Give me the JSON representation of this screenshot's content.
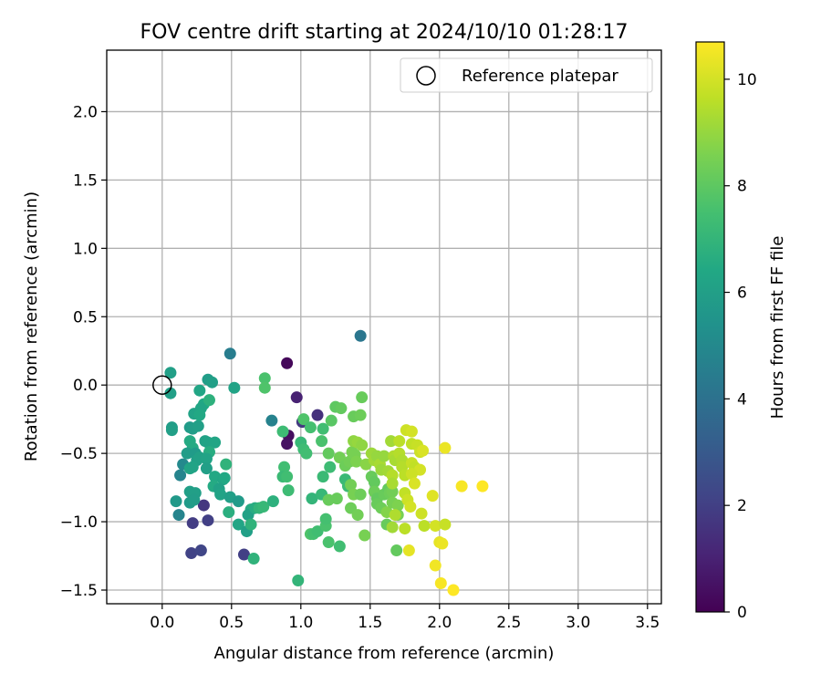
{
  "chart_data": {
    "type": "scatter",
    "title": "FOV centre drift starting at 2024/10/10 01:28:17",
    "xlabel": "Angular distance from reference (arcmin)",
    "ylabel": "Rotation from reference (arcmin)",
    "xlim": [
      -0.4,
      3.6
    ],
    "ylim": [
      -1.6,
      2.45
    ],
    "xticks": [
      0.0,
      0.5,
      1.0,
      1.5,
      2.0,
      2.5,
      3.0,
      3.5
    ],
    "xtick_labels": [
      "0.0",
      "0.5",
      "1.0",
      "1.5",
      "2.0",
      "2.5",
      "3.0",
      "3.5"
    ],
    "yticks": [
      -1.5,
      -1.0,
      -0.5,
      0.0,
      0.5,
      1.0,
      1.5,
      2.0
    ],
    "ytick_labels": [
      "−1.5",
      "−1.0",
      "−0.5",
      "0.0",
      "0.5",
      "1.0",
      "1.5",
      "2.0"
    ],
    "grid": true,
    "legend": {
      "placement": "top-right",
      "label": "Reference platepar"
    },
    "reference_point": {
      "x": 0.0,
      "y": 0.0
    },
    "colorbar": {
      "label": "Hours from first FF file",
      "min": 0,
      "max": 10.7,
      "ticks": [
        0,
        2,
        4,
        6,
        8,
        10
      ],
      "tick_labels": [
        "0",
        "2",
        "4",
        "6",
        "8",
        "10"
      ],
      "colormap": "viridis"
    },
    "points": [
      [
        0.9,
        0.16,
        0.2
      ],
      [
        0.97,
        -0.09,
        1.0
      ],
      [
        0.91,
        -0.37,
        0.4
      ],
      [
        0.9,
        -0.43,
        0.5
      ],
      [
        1.12,
        -0.22,
        1.5
      ],
      [
        1.01,
        -0.27,
        1.8
      ],
      [
        0.3,
        -0.88,
        1.7
      ],
      [
        0.22,
        -1.01,
        1.9
      ],
      [
        0.33,
        -0.99,
        2.0
      ],
      [
        0.21,
        -1.23,
        2.1
      ],
      [
        0.28,
        -1.21,
        2.2
      ],
      [
        0.59,
        -1.24,
        2.0
      ],
      [
        0.49,
        0.23,
        4.5
      ],
      [
        1.43,
        0.36,
        4.2
      ],
      [
        0.79,
        -0.26,
        4.7
      ],
      [
        0.13,
        -0.66,
        4.8
      ],
      [
        0.12,
        -0.95,
        4.8
      ],
      [
        0.15,
        -0.58,
        5.0
      ],
      [
        0.33,
        0.04,
        5.9
      ],
      [
        0.36,
        0.02,
        6.0
      ],
      [
        0.06,
        0.09,
        6.0
      ],
      [
        0.06,
        -0.06,
        6.0
      ],
      [
        0.52,
        -0.02,
        6.2
      ],
      [
        0.27,
        -0.04,
        6.3
      ],
      [
        0.3,
        -0.14,
        6.4
      ],
      [
        0.28,
        -0.17,
        6.3
      ],
      [
        0.23,
        -0.21,
        6.2
      ],
      [
        0.34,
        -0.11,
        6.8
      ],
      [
        0.07,
        -0.31,
        5.9
      ],
      [
        0.07,
        -0.33,
        6.0
      ],
      [
        0.2,
        -0.31,
        5.8
      ],
      [
        0.22,
        -0.32,
        5.9
      ],
      [
        0.26,
        -0.3,
        6.0
      ],
      [
        0.27,
        -0.22,
        6.4
      ],
      [
        0.2,
        -0.41,
        6.5
      ],
      [
        0.31,
        -0.41,
        6.1
      ],
      [
        0.33,
        -0.42,
        6.2
      ],
      [
        0.38,
        -0.42,
        6.3
      ],
      [
        0.22,
        -0.46,
        6.5
      ],
      [
        0.18,
        -0.5,
        5.9
      ],
      [
        0.24,
        -0.5,
        5.8
      ],
      [
        0.34,
        -0.49,
        6.6
      ],
      [
        0.25,
        -0.55,
        6.0
      ],
      [
        0.27,
        -0.53,
        6.1
      ],
      [
        0.32,
        -0.54,
        6.2
      ],
      [
        0.46,
        -0.58,
        6.9
      ],
      [
        0.2,
        -0.61,
        6.3
      ],
      [
        0.22,
        -0.6,
        6.2
      ],
      [
        0.32,
        -0.61,
        6.0
      ],
      [
        0.38,
        -0.67,
        6.4
      ],
      [
        0.44,
        -0.69,
        6.3
      ],
      [
        0.45,
        -0.68,
        6.4
      ],
      [
        0.37,
        -0.74,
        6.5
      ],
      [
        0.41,
        -0.76,
        6.1
      ],
      [
        0.2,
        -0.78,
        6.0
      ],
      [
        0.24,
        -0.79,
        6.0
      ],
      [
        0.42,
        -0.8,
        6.2
      ],
      [
        0.1,
        -0.85,
        5.7
      ],
      [
        0.2,
        -0.86,
        5.8
      ],
      [
        0.23,
        -0.84,
        5.9
      ],
      [
        0.49,
        -0.82,
        6.0
      ],
      [
        0.55,
        -0.85,
        5.8
      ],
      [
        0.48,
        -0.93,
        6.7
      ],
      [
        0.64,
        -0.91,
        6.5
      ],
      [
        0.62,
        -0.95,
        6.1
      ],
      [
        0.67,
        -0.9,
        6.6
      ],
      [
        0.7,
        -0.9,
        7.0
      ],
      [
        0.73,
        -0.89,
        7.1
      ],
      [
        0.8,
        -0.85,
        6.8
      ],
      [
        0.55,
        -1.02,
        6.3
      ],
      [
        0.61,
        -1.07,
        6.0
      ],
      [
        0.64,
        -1.02,
        6.9
      ],
      [
        0.66,
        -1.27,
        6.9
      ],
      [
        0.98,
        -1.43,
        7.0
      ],
      [
        0.74,
        0.05,
        7.6
      ],
      [
        0.74,
        -0.02,
        7.7
      ],
      [
        0.87,
        -0.34,
        7.3
      ],
      [
        0.88,
        -0.6,
        7.4
      ],
      [
        0.87,
        -0.67,
        7.2
      ],
      [
        0.9,
        -0.67,
        7.4
      ],
      [
        0.91,
        -0.77,
        7.3
      ],
      [
        1.0,
        -0.42,
        7.1
      ],
      [
        1.02,
        -0.47,
        7.3
      ],
      [
        1.04,
        -0.5,
        7.4
      ],
      [
        1.02,
        -0.25,
        7.7
      ],
      [
        1.07,
        -0.31,
        7.5
      ],
      [
        1.16,
        -0.32,
        7.4
      ],
      [
        1.08,
        -0.83,
        7.0
      ],
      [
        1.15,
        -0.8,
        7.1
      ],
      [
        1.16,
        -0.67,
        7.2
      ],
      [
        1.21,
        -0.6,
        7.3
      ],
      [
        1.15,
        -0.41,
        7.6
      ],
      [
        1.07,
        -1.09,
        7.7
      ],
      [
        1.09,
        -1.09,
        7.5
      ],
      [
        1.12,
        -1.07,
        7.4
      ],
      [
        1.18,
        -1.03,
        7.6
      ],
      [
        1.18,
        -0.98,
        7.5
      ],
      [
        1.2,
        -1.15,
        7.6
      ],
      [
        1.28,
        -1.18,
        7.4
      ],
      [
        1.32,
        -0.69,
        7.2
      ],
      [
        1.34,
        -0.74,
        7.3
      ],
      [
        1.22,
        -0.26,
        7.9
      ],
      [
        1.25,
        -0.16,
        8.0
      ],
      [
        1.29,
        -0.17,
        8.1
      ],
      [
        1.38,
        -0.23,
        8.2
      ],
      [
        1.43,
        -0.22,
        8.3
      ],
      [
        1.44,
        -0.09,
        8.2
      ],
      [
        1.2,
        -0.5,
        8.1
      ],
      [
        1.2,
        -0.84,
        8.2
      ],
      [
        1.26,
        -0.83,
        8.2
      ],
      [
        1.28,
        -0.53,
        8.4
      ],
      [
        1.32,
        -0.59,
        8.3
      ],
      [
        1.35,
        -0.56,
        8.4
      ],
      [
        1.37,
        -0.49,
        8.5
      ],
      [
        1.39,
        -0.51,
        8.5
      ],
      [
        1.4,
        -0.56,
        8.6
      ],
      [
        1.36,
        -0.73,
        8.4
      ],
      [
        1.38,
        -0.8,
        8.5
      ],
      [
        1.43,
        -0.8,
        8.3
      ],
      [
        1.36,
        -0.9,
        8.3
      ],
      [
        1.41,
        -0.95,
        8.4
      ],
      [
        1.46,
        -1.1,
        8.5
      ],
      [
        1.51,
        -0.67,
        8.2
      ],
      [
        1.53,
        -0.71,
        8.1
      ],
      [
        1.53,
        -0.78,
        8.3
      ],
      [
        1.55,
        -0.83,
        8.1
      ],
      [
        1.55,
        -0.87,
        8.2
      ],
      [
        1.58,
        -0.9,
        8.3
      ],
      [
        1.6,
        -0.8,
        8.2
      ],
      [
        1.63,
        -0.76,
        8.1
      ],
      [
        1.64,
        -0.79,
        8.3
      ],
      [
        1.66,
        -0.78,
        8.4
      ],
      [
        1.62,
        -1.02,
        8.2
      ],
      [
        1.62,
        -0.93,
        8.7
      ],
      [
        1.66,
        -0.86,
        8.5
      ],
      [
        1.7,
        -0.88,
        8.6
      ],
      [
        1.7,
        -0.95,
        8.5
      ],
      [
        1.38,
        -0.41,
        8.9
      ],
      [
        1.41,
        -0.42,
        9.0
      ],
      [
        1.44,
        -0.44,
        8.9
      ],
      [
        1.47,
        -0.58,
        8.8
      ],
      [
        1.51,
        -0.5,
        9.1
      ],
      [
        1.53,
        -0.55,
        9.2
      ],
      [
        1.55,
        -0.52,
        9.0
      ],
      [
        1.57,
        -0.58,
        9.3
      ],
      [
        1.58,
        -0.62,
        9.1
      ],
      [
        1.6,
        -0.52,
        9.0
      ],
      [
        1.63,
        -0.63,
        9.2
      ],
      [
        1.65,
        -0.41,
        9.2
      ],
      [
        1.67,
        -0.52,
        9.4
      ],
      [
        1.68,
        -0.55,
        9.3
      ],
      [
        1.71,
        -0.5,
        9.5
      ],
      [
        1.73,
        -0.55,
        9.4
      ],
      [
        1.73,
        -0.6,
        9.5
      ],
      [
        1.75,
        -0.66,
        9.6
      ],
      [
        1.71,
        -0.41,
        9.6
      ],
      [
        1.76,
        -0.33,
        9.9
      ],
      [
        1.8,
        -0.34,
        10.0
      ],
      [
        1.8,
        -0.43,
        9.7
      ],
      [
        1.84,
        -0.44,
        9.8
      ],
      [
        1.86,
        -0.49,
        9.9
      ],
      [
        1.88,
        -0.48,
        10.1
      ],
      [
        1.8,
        -0.57,
        9.8
      ],
      [
        1.82,
        -0.6,
        9.7
      ],
      [
        1.86,
        -0.62,
        10.0
      ],
      [
        1.8,
        -0.65,
        9.9
      ],
      [
        1.82,
        -0.72,
        10.1
      ],
      [
        1.75,
        -0.79,
        9.7
      ],
      [
        1.77,
        -0.84,
        9.9
      ],
      [
        1.79,
        -0.89,
        10.0
      ],
      [
        1.66,
        -0.66,
        9.5
      ],
      [
        1.66,
        -0.72,
        9.3
      ],
      [
        1.66,
        -1.04,
        9.2
      ],
      [
        1.68,
        -0.95,
        9.4
      ],
      [
        1.69,
        -1.21,
        8.1
      ],
      [
        1.75,
        -1.05,
        9.6
      ],
      [
        1.78,
        -1.21,
        10.3
      ],
      [
        1.87,
        -0.94,
        9.9
      ],
      [
        1.89,
        -1.03,
        9.6
      ],
      [
        1.95,
        -0.81,
        10.2
      ],
      [
        1.97,
        -1.32,
        10.5
      ],
      [
        1.97,
        -1.03,
        10.0
      ],
      [
        2.0,
        -1.15,
        10.3
      ],
      [
        2.02,
        -1.16,
        10.4
      ],
      [
        2.01,
        -1.45,
        10.6
      ],
      [
        2.04,
        -1.02,
        9.8
      ],
      [
        2.04,
        -0.46,
        10.4
      ],
      [
        2.1,
        -1.5,
        10.7
      ],
      [
        2.16,
        -0.74,
        10.6
      ],
      [
        2.31,
        -0.74,
        10.7
      ]
    ]
  }
}
